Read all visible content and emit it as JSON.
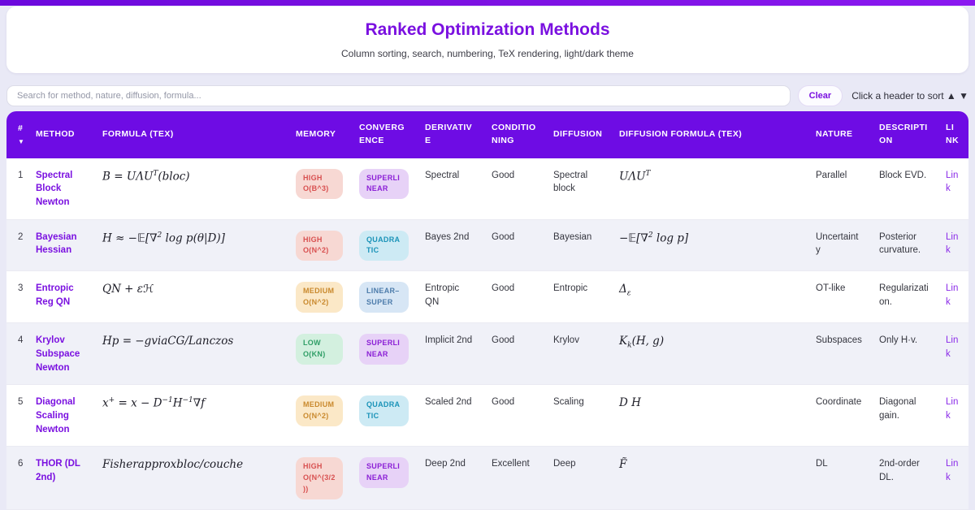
{
  "app": {
    "title": "Ranked Optimization Methods",
    "subtitle": "Column sorting, search, numbering, TeX rendering, light/dark theme"
  },
  "toolbar": {
    "search_placeholder": "Search for method, nature, diffusion, formula...",
    "clear_label": "Clear",
    "sort_hint": "Click a header to sort ▲ ▼"
  },
  "table": {
    "columns": [
      "#",
      "METHOD",
      "FORMULA (TEX)",
      "MEMORY",
      "CONVERGENCE",
      "DERIVATIVE",
      "CONDITIONING",
      "DIFFUSION",
      "DIFFUSION FORMULA (TEX)",
      "NATURE",
      "DESCRIPTION",
      "LINK"
    ],
    "sort_indicator": "▼",
    "rows": [
      {
        "num": "1",
        "method": "Spectral Block Newton",
        "formula_html": "B = UΛU<sup>T</sup>(bloc)",
        "memory": {
          "label": "HIGH O(B^3)",
          "level": "high"
        },
        "convergence": {
          "label": "SUPERLINEAR",
          "type": "superlinear"
        },
        "derivative": "Spectral",
        "conditioning": "Good",
        "diffusion": "Spectral block",
        "diffusion_formula_html": "UΛU<sup>T</sup>",
        "nature": "Parallel",
        "description": "Block EVD.",
        "link": "Link"
      },
      {
        "num": "2",
        "method": "Bayesian Hessian",
        "formula_html": "H ≈ −𝔼[∇<sup>2</sup> log p(θ|D)]",
        "memory": {
          "label": "HIGH O(N^2)",
          "level": "high"
        },
        "convergence": {
          "label": "QUADRATIC",
          "type": "quadratic"
        },
        "derivative": "Bayes 2nd",
        "conditioning": "Good",
        "diffusion": "Bayesian",
        "diffusion_formula_html": "−𝔼[∇<sup>2</sup> log p]",
        "nature": "Uncertainty",
        "description": "Posterior curvature.",
        "link": "Link"
      },
      {
        "num": "3",
        "method": "Entropic Reg QN",
        "formula_html": "QN + εℋ",
        "memory": {
          "label": "MEDIUM O(N^2)",
          "level": "medium"
        },
        "convergence": {
          "label": "LINEAR–SUPER",
          "type": "linear"
        },
        "derivative": "Entropic QN",
        "conditioning": "Good",
        "diffusion": "Entropic",
        "diffusion_formula_html": "Δ<sub>ε</sub>",
        "nature": "OT-like",
        "description": "Regularization.",
        "link": "Link"
      },
      {
        "num": "4",
        "method": "Krylov Subspace Newton",
        "formula_html": "Hp = −gviaCG/Lanczos",
        "memory": {
          "label": "LOW O(KN)",
          "level": "low"
        },
        "convergence": {
          "label": "SUPERLINEAR",
          "type": "superlinear"
        },
        "derivative": "Implicit 2nd",
        "conditioning": "Good",
        "diffusion": "Krylov",
        "diffusion_formula_html": "K<sub>k</sub>(H, g)",
        "nature": "Subspaces",
        "description": "Only H·v.",
        "link": "Link"
      },
      {
        "num": "5",
        "method": "Diagonal Scaling Newton",
        "formula_html": "x<sup>+</sup> = x − D<sup>−1</sup>H<sup>−1</sup>∇f",
        "memory": {
          "label": "MEDIUM O(N^2)",
          "level": "medium"
        },
        "convergence": {
          "label": "QUADRATIC",
          "type": "quadratic"
        },
        "derivative": "Scaled 2nd",
        "conditioning": "Good",
        "diffusion": "Scaling",
        "diffusion_formula_html": "D H",
        "nature": "Coordinate",
        "description": "Diagonal gain.",
        "link": "Link"
      },
      {
        "num": "6",
        "method": "THOR (DL 2nd)",
        "formula_html": "Fisherapproxbloc/couche",
        "memory": {
          "label": "HIGH O(N^(3/2))",
          "level": "high"
        },
        "convergence": {
          "label": "SUPERLINEAR",
          "type": "superlinear"
        },
        "derivative": "Deep 2nd",
        "conditioning": "Excellent",
        "diffusion": "Deep",
        "diffusion_formula_html": "F̃",
        "nature": "DL",
        "description": "2nd-order DL.",
        "link": "Link"
      }
    ]
  },
  "colors": {
    "page_bg": "#e9e9f6",
    "accent": "#7a10e0",
    "header_bg": "#6e0ce4",
    "row_alt": "#f0f1f8",
    "link": "#8b2be8",
    "badge_high_bg": "#f7d8d3",
    "badge_high_text": "#d85050",
    "badge_medium_bg": "#fbe8c7",
    "badge_medium_text": "#c9892d",
    "badge_low_bg": "#d3f0df",
    "badge_low_text": "#2f9e66",
    "badge_superlinear_bg": "#e7d2f7",
    "badge_superlinear_text": "#8b1fd6",
    "badge_quadratic_bg": "#cdeaf4",
    "badge_quadratic_text": "#1a93b8",
    "badge_linear_bg": "#d7e6f5",
    "badge_linear_text": "#4d7cab"
  }
}
